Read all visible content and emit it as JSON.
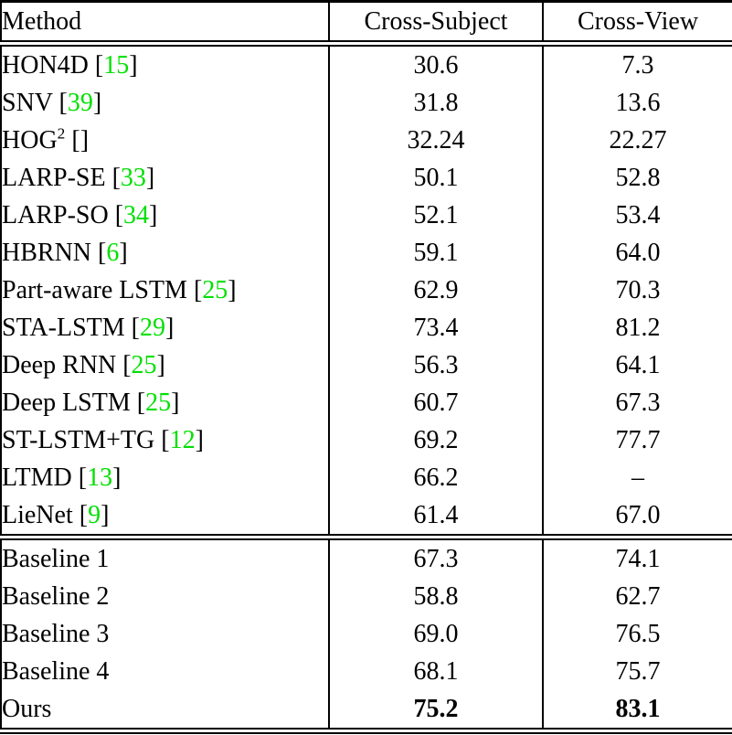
{
  "table": {
    "citation_color": "#00e000",
    "header": {
      "method": "Method",
      "cross_subject": "Cross-Subject",
      "cross_view": "Cross-View"
    },
    "groups": [
      {
        "rows": [
          {
            "method": "HON4D",
            "superscript": "",
            "brackets": true,
            "citation": "15",
            "cross_subject": "30.6",
            "cross_view": "7.3",
            "bold": false
          },
          {
            "method": "SNV",
            "superscript": "",
            "brackets": true,
            "citation": "39",
            "cross_subject": "31.8",
            "cross_view": "13.6",
            "bold": false
          },
          {
            "method": "HOG",
            "superscript": "2",
            "brackets": true,
            "citation": "",
            "cross_subject": "32.24",
            "cross_view": "22.27",
            "bold": false
          },
          {
            "method": "LARP-SE",
            "superscript": "",
            "brackets": true,
            "citation": "33",
            "cross_subject": "50.1",
            "cross_view": "52.8",
            "bold": false
          },
          {
            "method": "LARP-SO",
            "superscript": "",
            "brackets": true,
            "citation": "34",
            "cross_subject": "52.1",
            "cross_view": "53.4",
            "bold": false
          },
          {
            "method": "HBRNN",
            "superscript": "",
            "brackets": true,
            "citation": "6",
            "cross_subject": "59.1",
            "cross_view": "64.0",
            "bold": false
          },
          {
            "method": "Part-aware LSTM",
            "superscript": "",
            "brackets": true,
            "citation": "25",
            "cross_subject": "62.9",
            "cross_view": "70.3",
            "bold": false
          },
          {
            "method": "STA-LSTM",
            "superscript": "",
            "brackets": true,
            "citation": "29",
            "cross_subject": "73.4",
            "cross_view": "81.2",
            "bold": false
          },
          {
            "method": "Deep RNN",
            "superscript": "",
            "brackets": true,
            "citation": "25",
            "cross_subject": "56.3",
            "cross_view": "64.1",
            "bold": false
          },
          {
            "method": "Deep LSTM",
            "superscript": "",
            "brackets": true,
            "citation": "25",
            "cross_subject": "60.7",
            "cross_view": "67.3",
            "bold": false
          },
          {
            "method": "ST-LSTM+TG",
            "superscript": "",
            "brackets": true,
            "citation": "12",
            "cross_subject": "69.2",
            "cross_view": "77.7",
            "bold": false
          },
          {
            "method": "LTMD",
            "superscript": "",
            "brackets": true,
            "citation": "13",
            "cross_subject": "66.2",
            "cross_view": "–",
            "bold": false
          },
          {
            "method": "LieNet",
            "superscript": "",
            "brackets": true,
            "citation": "9",
            "cross_subject": "61.4",
            "cross_view": "67.0",
            "bold": false
          }
        ]
      },
      {
        "rows": [
          {
            "method": "Baseline 1",
            "superscript": "",
            "brackets": false,
            "citation": "",
            "cross_subject": "67.3",
            "cross_view": "74.1",
            "bold": false
          },
          {
            "method": "Baseline 2",
            "superscript": "",
            "brackets": false,
            "citation": "",
            "cross_subject": "58.8",
            "cross_view": "62.7",
            "bold": false
          },
          {
            "method": "Baseline 3",
            "superscript": "",
            "brackets": false,
            "citation": "",
            "cross_subject": "69.0",
            "cross_view": "76.5",
            "bold": false
          },
          {
            "method": "Baseline 4",
            "superscript": "",
            "brackets": false,
            "citation": "",
            "cross_subject": "68.1",
            "cross_view": "75.7",
            "bold": false
          },
          {
            "method": "Ours",
            "superscript": "",
            "brackets": false,
            "citation": "",
            "cross_subject": "75.2",
            "cross_view": "83.1",
            "bold": true
          }
        ]
      }
    ]
  }
}
